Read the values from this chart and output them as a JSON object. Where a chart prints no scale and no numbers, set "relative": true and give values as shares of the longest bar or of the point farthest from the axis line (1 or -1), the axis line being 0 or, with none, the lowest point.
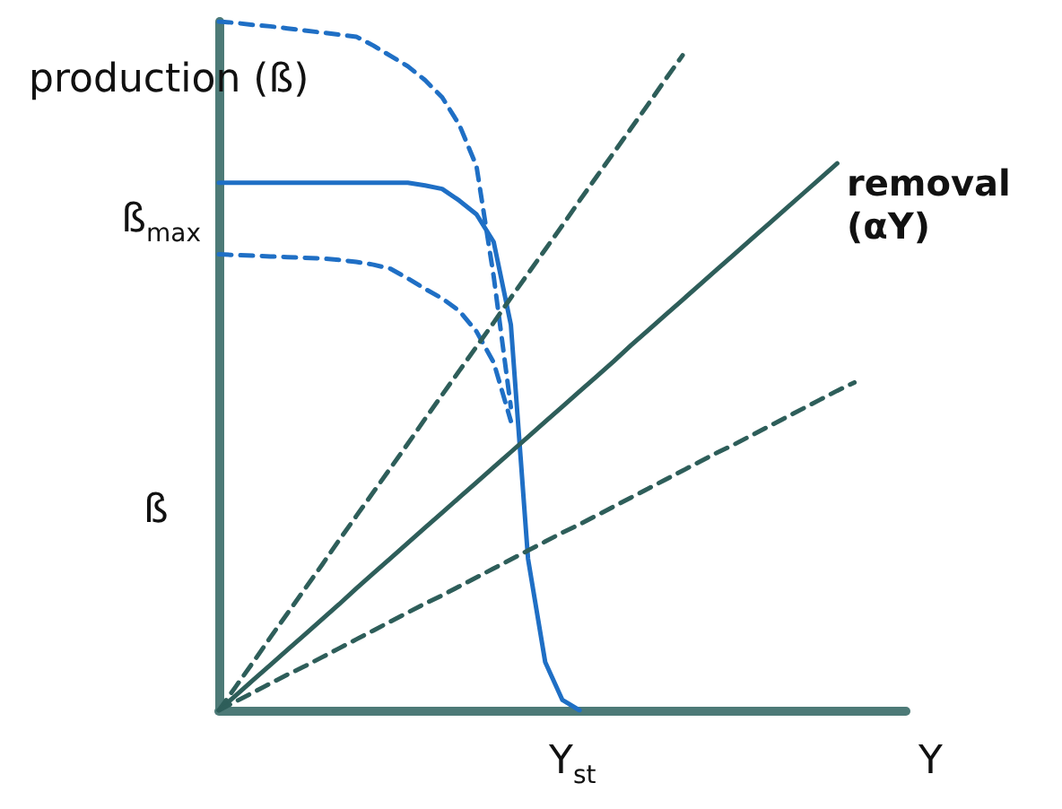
{
  "chart_data": {
    "type": "line",
    "relative": true,
    "xlabel": "Y",
    "ylabel": "ß",
    "marker": "none",
    "categories": [
      null,
      null,
      null,
      null,
      null,
      null,
      null,
      null,
      null,
      null,
      null,
      null,
      null,
      null,
      null,
      null,
      null,
      null,
      null,
      null,
      null,
      null,
      null,
      null,
      null,
      null,
      null,
      null,
      null,
      null,
      null,
      null,
      null,
      null,
      null,
      null,
      null,
      null,
      null,
      null,
      null
    ],
    "series": [
      {
        "color": "#1f6fc5",
        "line_style": "solid",
        "values": [
          0.766,
          0.766,
          0.766,
          0.766,
          0.766,
          0.766,
          0.766,
          0.766,
          0.766,
          0.766,
          0.766,
          0.766,
          0.762,
          0.757,
          0.74,
          0.72,
          0.68,
          0.56,
          0.22,
          0.07,
          0.015,
          0,
          null,
          null,
          null,
          null,
          null,
          null,
          null,
          null,
          null,
          null,
          null,
          null,
          null,
          null,
          null,
          null,
          null,
          null,
          null
        ]
      },
      {
        "color": "#1f6fc5",
        "line_style": "dashed",
        "values": [
          1,
          0.998,
          0.995,
          0.993,
          0.99,
          0.987,
          0.984,
          0.981,
          0.978,
          0.965,
          0.95,
          0.935,
          0.915,
          0.89,
          0.85,
          0.79,
          0.63,
          0.44,
          null,
          null,
          null,
          null,
          null,
          null,
          null,
          null,
          null,
          null,
          null,
          null,
          null,
          null,
          null,
          null,
          null,
          null,
          null,
          null,
          null,
          null,
          null
        ]
      },
      {
        "color": "#1f6fc5",
        "line_style": "dashed",
        "values": [
          0.662,
          0.661,
          0.66,
          0.659,
          0.658,
          0.657,
          0.656,
          0.654,
          0.651,
          0.647,
          0.641,
          0.627,
          0.612,
          0.598,
          0.58,
          0.55,
          0.505,
          0.42,
          null,
          null,
          null,
          null,
          null,
          null,
          null,
          null,
          null,
          null,
          null,
          null,
          null,
          null,
          null,
          null,
          null,
          null,
          null,
          null,
          null,
          null,
          null
        ]
      },
      {
        "color": "#2e5e5a",
        "line_style": "solid",
        "values": [
          0,
          0.022,
          0.044,
          0.066,
          0.088,
          0.11,
          0.132,
          0.154,
          0.177,
          0.199,
          0.221,
          0.243,
          0.265,
          0.287,
          0.309,
          0.331,
          0.353,
          0.375,
          0.397,
          0.419,
          0.441,
          0.463,
          0.485,
          0.507,
          0.53,
          0.552,
          0.574,
          0.596,
          0.618,
          0.64,
          0.662,
          0.684,
          0.706,
          0.728,
          0.75,
          0.772,
          0.794,
          null,
          null,
          null,
          null
        ]
      },
      {
        "color": "#2e5e5a",
        "line_style": "dashed",
        "values": [
          0,
          0.035,
          0.07,
          0.106,
          0.141,
          0.176,
          0.211,
          0.247,
          0.282,
          0.317,
          0.352,
          0.387,
          0.423,
          0.458,
          0.493,
          0.528,
          0.563,
          0.599,
          0.634,
          0.669,
          0.704,
          0.74,
          0.775,
          0.81,
          0.845,
          0.88,
          0.916,
          0.951,
          null,
          null,
          null,
          null,
          null,
          null,
          null,
          null,
          null,
          null,
          null,
          null,
          null
        ]
      },
      {
        "color": "#2e5e5a",
        "line_style": "dashed",
        "values": [
          0,
          0.013,
          0.026,
          0.039,
          0.052,
          0.064,
          0.077,
          0.09,
          0.103,
          0.116,
          0.129,
          0.142,
          0.155,
          0.167,
          0.18,
          0.193,
          0.206,
          0.219,
          0.232,
          0.245,
          0.258,
          0.27,
          0.283,
          0.296,
          0.309,
          0.322,
          0.335,
          0.348,
          0.361,
          0.374,
          0.386,
          0.399,
          0.412,
          0.425,
          0.438,
          0.451,
          0.464,
          0.476,
          null,
          null,
          null
        ]
      }
    ],
    "annotations": [
      "production (ß)",
      "removal (αY)",
      "ß$_{max}$",
      "Y$_{st}$"
    ]
  }
}
